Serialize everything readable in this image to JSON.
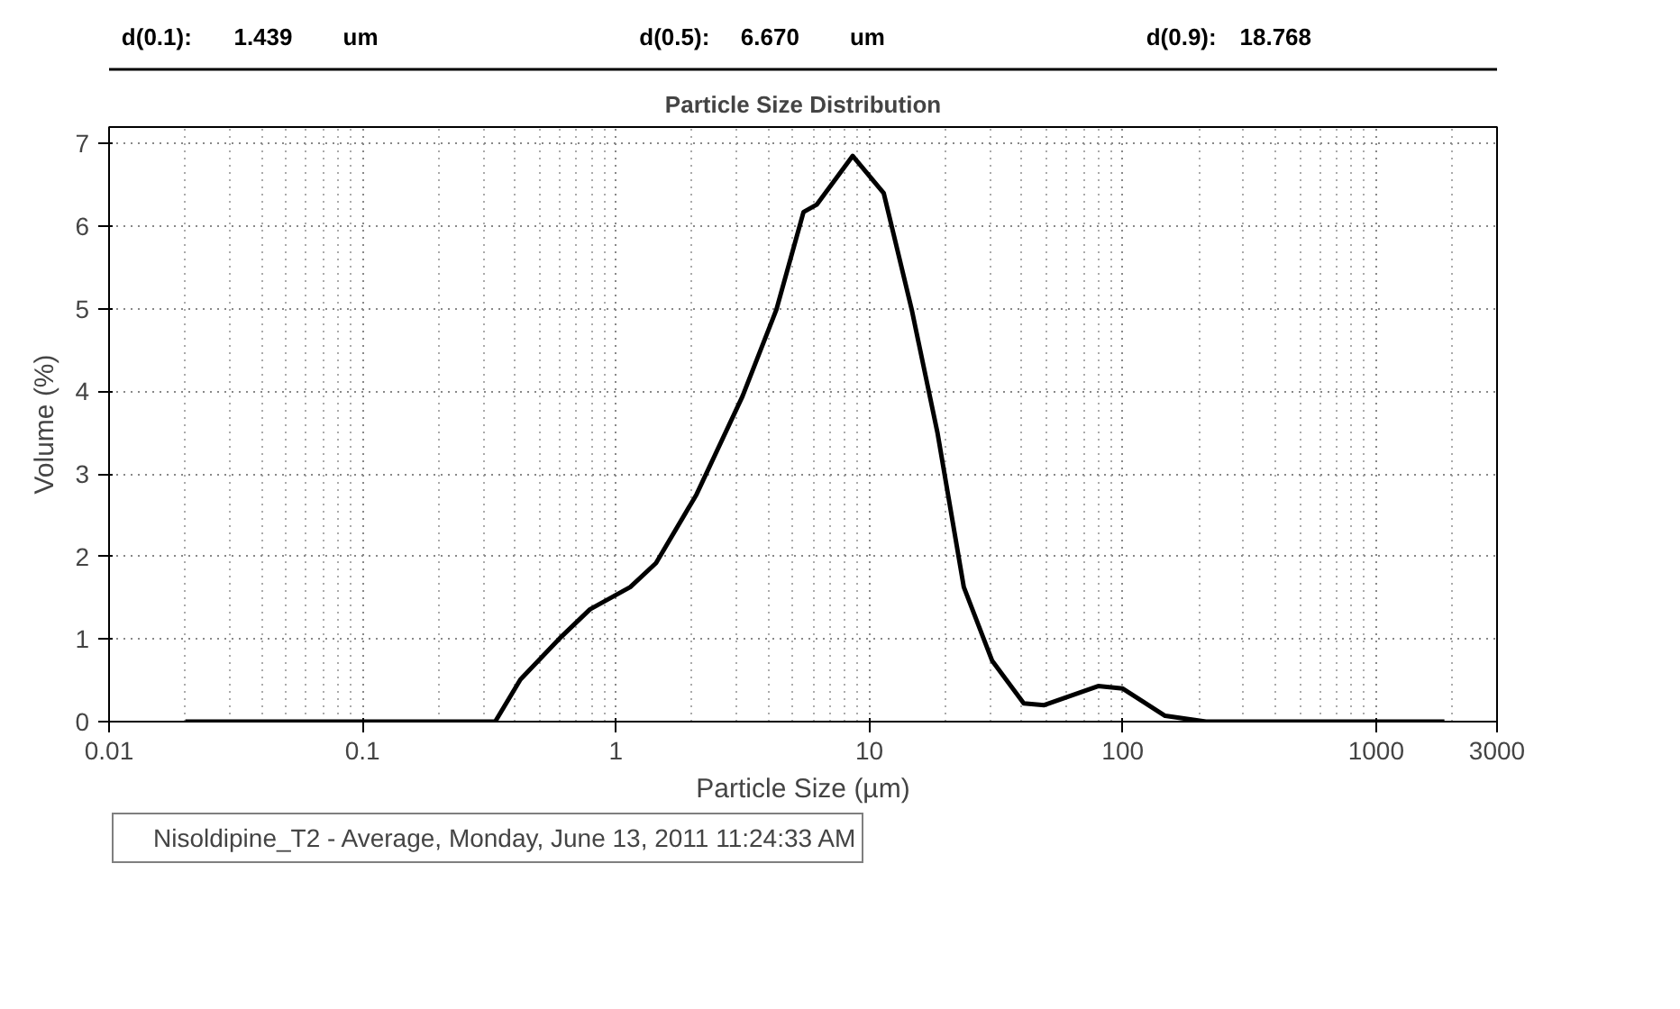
{
  "chart_data": {
    "type": "line",
    "title": "Particle Size Distribution",
    "xlabel": "Particle Size (µm)",
    "ylabel": "Volume (%)",
    "annotations": [
      "d(0.1):",
      "1.439",
      "um",
      "d(0.5):",
      "6.670",
      "um",
      "d(0.9):",
      "18.768"
    ],
    "log": "x",
    "xlim": [
      0.01,
      3000
    ],
    "ylim": [
      0,
      7.2
    ],
    "xticks": [
      0.01,
      0.1,
      1,
      10,
      100,
      1000,
      3000
    ],
    "yticks": [
      0,
      1,
      2,
      3,
      4,
      5,
      6,
      7
    ],
    "grid": true,
    "legend": "bottom",
    "marker": "none",
    "line_style": "solid",
    "series": [
      {
        "name": "Nisoldipine_T2 - Average, Monday, June 13, 2011 11:24:33 AM",
        "color": "#000000",
        "x": [
          0.02,
          0.1,
          0.334,
          0.42,
          0.61,
          0.79,
          1.14,
          1.44,
          2.08,
          3.16,
          4.3,
          5.5,
          6.2,
          8.6,
          11.4,
          14.7,
          18.6,
          23.6,
          30.5,
          40.7,
          49,
          80,
          100,
          147,
          213,
          1000,
          1860
        ],
        "values": [
          0,
          0,
          0,
          0.51,
          1.03,
          1.36,
          1.63,
          1.92,
          2.75,
          3.94,
          4.99,
          6.17,
          6.26,
          6.85,
          6.4,
          4.99,
          3.49,
          1.63,
          0.74,
          0.22,
          0.2,
          0.43,
          0.4,
          0.07,
          0,
          0,
          0
        ]
      }
    ]
  }
}
